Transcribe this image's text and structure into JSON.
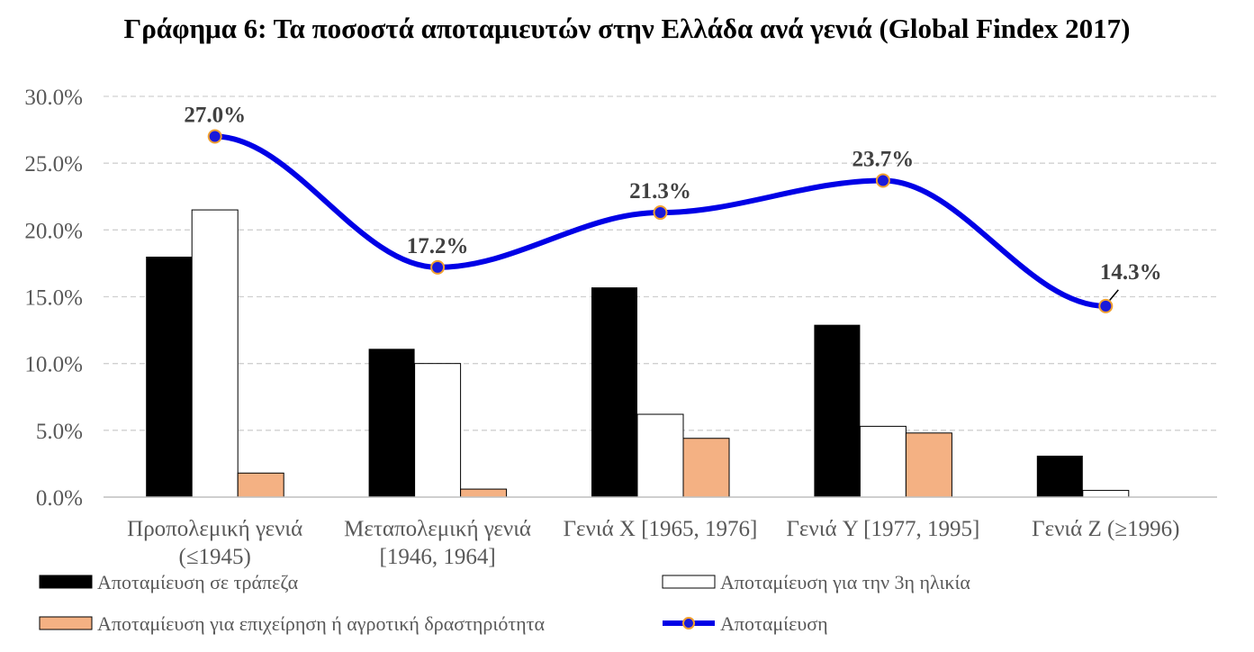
{
  "title": "Γράφημα 6: Τα ποσοστά αποταμιευτών στην Ελλάδα ανά γενιά (Global Findex 2017)",
  "colors": {
    "bank": "#000000",
    "retirement": "#ffffff",
    "business": "#f4b183",
    "line": "#0000e6",
    "marker_border": "#f0a030",
    "grid": "#d0d0d0",
    "text": "#595959"
  },
  "chart_data": {
    "type": "bar",
    "categories": [
      [
        "Προπολεμική γενιά",
        "(≤1945)"
      ],
      [
        "Μεταπολεμική γενιά",
        "[1946, 1964]"
      ],
      [
        "Γενιά X [1965, 1976]"
      ],
      [
        "Γενιά Y [1977, 1995]"
      ],
      [
        "Γενιά Z (≥1996)"
      ]
    ],
    "ylim": [
      0,
      30
    ],
    "yticks": [
      "0.0%",
      "5.0%",
      "10.0%",
      "15.0%",
      "20.0%",
      "25.0%",
      "30.0%"
    ],
    "grid": true,
    "legend_position": "bottom",
    "series": [
      {
        "name": "Αποταμίευση σε τράπεζα",
        "type": "bar",
        "values": [
          18.0,
          11.1,
          15.7,
          12.9,
          3.1
        ]
      },
      {
        "name": "Αποταμίευση για την 3η ηλικία",
        "type": "bar",
        "values": [
          21.5,
          10.0,
          6.2,
          5.3,
          0.5
        ]
      },
      {
        "name": "Αποταμίευση για επιχείρηση ή αγροτική δραστηριότητα",
        "type": "bar",
        "values": [
          1.8,
          0.6,
          4.4,
          4.8,
          0.0
        ]
      },
      {
        "name": "Αποταμίευση",
        "type": "line",
        "values": [
          27.0,
          17.2,
          21.3,
          23.7,
          14.3
        ],
        "data_labels": [
          "27.0%",
          "17.2%",
          "21.3%",
          "23.7%",
          "14.3%"
        ]
      }
    ]
  }
}
